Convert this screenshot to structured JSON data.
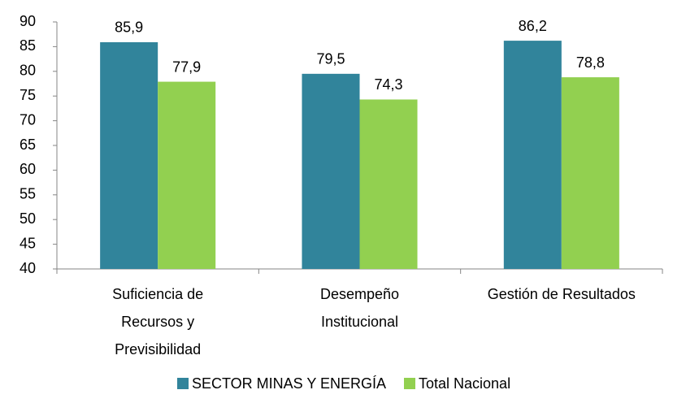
{
  "chart_data": {
    "type": "bar",
    "categories": [
      "Suficiencia de\nRecursos y\nPrevisibilidad",
      "Desempeño\nInstitucional",
      "Gestión de Resultados"
    ],
    "series": [
      {
        "name": "SECTOR MINAS Y ENERGÍA",
        "color": "#31849b",
        "values": [
          85.9,
          79.5,
          86.2
        ],
        "value_labels": [
          "85,9",
          "79,5",
          "86,2"
        ]
      },
      {
        "name": "Total Nacional",
        "color": "#92d050",
        "values": [
          77.9,
          74.3,
          78.8
        ],
        "value_labels": [
          "77,9",
          "74,3",
          "78,8"
        ]
      }
    ],
    "ylim": [
      40,
      90
    ],
    "yticks": [
      40,
      45,
      50,
      55,
      60,
      65,
      70,
      75,
      80,
      85,
      90
    ],
    "legend": "bottom"
  }
}
